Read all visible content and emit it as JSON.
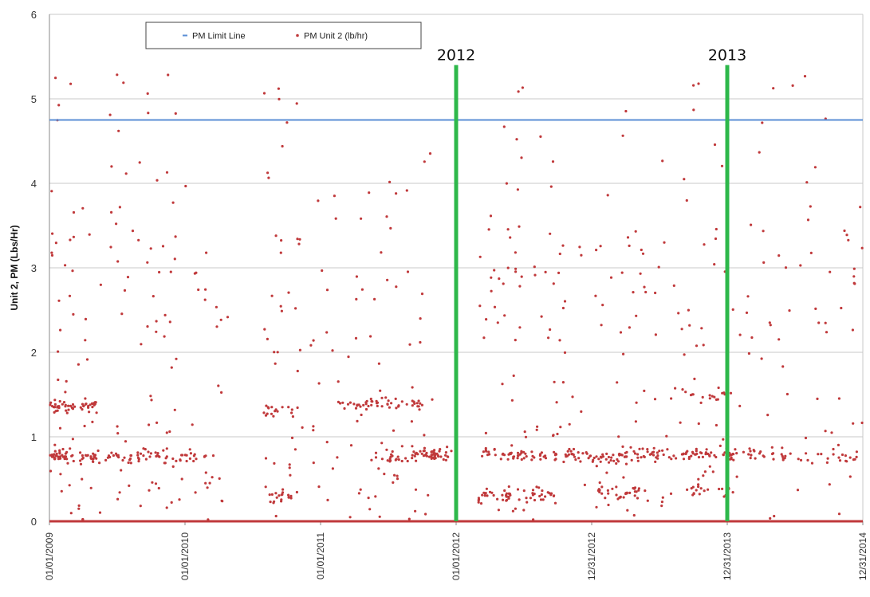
{
  "chart_data": {
    "type": "scatter",
    "ylabel": "Unit 2, PM (Lbs/Hr)",
    "xlabel": "",
    "ylim": [
      0,
      6
    ],
    "yticks": [
      0,
      1,
      2,
      3,
      4,
      5,
      6
    ],
    "xlim": [
      "2009-01-01",
      "2014-12-31"
    ],
    "xtick_labels": [
      "01/01/2009",
      "01/01/2010",
      "01/01/2011",
      "01/01/2012",
      "12/31/2012",
      "12/31/2013",
      "12/31/2014"
    ],
    "xtick_dates": [
      "2009-01-01",
      "2010-01-01",
      "2011-01-01",
      "2012-01-01",
      "2012-12-31",
      "2013-12-31",
      "2014-12-31"
    ],
    "grid": true,
    "legend_placement": "top-left",
    "legend": [
      {
        "label": "PM Limit Line",
        "color": "#5b8fd6",
        "marker": "line"
      },
      {
        "label": "PM Unit 2 (lb/hr)",
        "color": "#c0393b",
        "marker": "dot"
      }
    ],
    "limit_line": {
      "name": "PM Limit Line",
      "y": 4.75,
      "color": "#5b8fd6"
    },
    "year_markers": [
      {
        "label": "2012",
        "date": "2012-01-01",
        "color": "#2eb84b"
      },
      {
        "label": "2013",
        "date": "2013-12-31",
        "color": "#2eb84b"
      }
    ],
    "series_name": "PM Unit 2 (lb/hr)",
    "series_color": "#c0393b",
    "baseline_y": 0,
    "clusters": [
      {
        "start": "2009-01-01",
        "end": "2009-03-10",
        "level": "high",
        "density": 34
      },
      {
        "start": "2009-01-01",
        "end": "2009-03-10",
        "band": 1.35,
        "density": 28
      },
      {
        "start": "2009-01-01",
        "end": "2009-03-10",
        "band": 0.78,
        "density": 34
      },
      {
        "start": "2009-03-20",
        "end": "2009-05-20",
        "level": "mid",
        "density": 20
      },
      {
        "start": "2009-03-20",
        "end": "2009-05-10",
        "band": 1.38,
        "density": 20
      },
      {
        "start": "2009-03-20",
        "end": "2009-05-10",
        "band": 0.75,
        "density": 22
      },
      {
        "start": "2009-06-01",
        "end": "2009-08-15",
        "level": "high",
        "density": 22
      },
      {
        "start": "2009-06-01",
        "end": "2009-08-15",
        "band": 0.75,
        "density": 20
      },
      {
        "start": "2009-08-25",
        "end": "2009-11-20",
        "level": "high",
        "density": 30
      },
      {
        "start": "2009-08-25",
        "end": "2009-11-20",
        "band": 0.78,
        "density": 24
      },
      {
        "start": "2009-11-20",
        "end": "2010-03-01",
        "level": "high",
        "density": 26
      },
      {
        "start": "2009-11-20",
        "end": "2010-03-01",
        "band": 0.75,
        "density": 18
      },
      {
        "start": "2010-03-01",
        "end": "2010-05-01",
        "level": "low",
        "density": 14
      },
      {
        "start": "2010-08-01",
        "end": "2010-11-01",
        "level": "high",
        "density": 34
      },
      {
        "start": "2010-08-01",
        "end": "2010-11-01",
        "band": 1.3,
        "density": 18
      },
      {
        "start": "2010-08-01",
        "end": "2010-11-01",
        "band": 0.3,
        "density": 18
      },
      {
        "start": "2010-11-01",
        "end": "2011-02-15",
        "level": "mid",
        "density": 22
      },
      {
        "start": "2011-02-15",
        "end": "2011-05-15",
        "level": "mid",
        "density": 16
      },
      {
        "start": "2011-02-15",
        "end": "2011-05-15",
        "band": 1.38,
        "density": 18
      },
      {
        "start": "2011-05-15",
        "end": "2011-08-15",
        "level": "mid",
        "density": 24
      },
      {
        "start": "2011-05-15",
        "end": "2011-08-15",
        "band": 1.4,
        "density": 20
      },
      {
        "start": "2011-05-15",
        "end": "2011-08-15",
        "band": 0.75,
        "density": 18
      },
      {
        "start": "2011-08-15",
        "end": "2011-11-01",
        "level": "mid",
        "density": 18
      },
      {
        "start": "2011-08-15",
        "end": "2011-11-01",
        "band": 0.8,
        "density": 30
      },
      {
        "start": "2011-08-15",
        "end": "2011-11-01",
        "band": 1.4,
        "density": 12
      },
      {
        "start": "2011-11-01",
        "end": "2011-12-20",
        "band": 0.8,
        "density": 22
      },
      {
        "start": "2012-03-01",
        "end": "2012-06-01",
        "level": "high",
        "density": 26
      },
      {
        "start": "2012-03-01",
        "end": "2012-06-01",
        "band": 0.3,
        "density": 30
      },
      {
        "start": "2012-03-01",
        "end": "2012-06-01",
        "band": 0.8,
        "density": 22
      },
      {
        "start": "2012-06-01",
        "end": "2012-10-01",
        "level": "high",
        "density": 46
      },
      {
        "start": "2012-06-01",
        "end": "2012-10-01",
        "band": 0.78,
        "density": 30
      },
      {
        "start": "2012-06-01",
        "end": "2012-10-01",
        "band": 0.3,
        "density": 20
      },
      {
        "start": "2012-10-01",
        "end": "2013-01-15",
        "level": "mid",
        "density": 20
      },
      {
        "start": "2012-10-01",
        "end": "2013-01-15",
        "band": 0.78,
        "density": 26
      },
      {
        "start": "2013-01-15",
        "end": "2013-05-15",
        "level": "high",
        "density": 32
      },
      {
        "start": "2013-01-15",
        "end": "2013-05-15",
        "band": 0.78,
        "density": 36
      },
      {
        "start": "2013-01-15",
        "end": "2013-05-15",
        "band": 0.35,
        "density": 30
      },
      {
        "start": "2013-05-15",
        "end": "2013-09-01",
        "level": "high",
        "density": 24
      },
      {
        "start": "2013-05-15",
        "end": "2013-09-01",
        "band": 0.8,
        "density": 24
      },
      {
        "start": "2013-09-01",
        "end": "2014-01-20",
        "level": "high",
        "density": 32
      },
      {
        "start": "2013-09-01",
        "end": "2014-01-20",
        "band": 0.8,
        "density": 46
      },
      {
        "start": "2013-09-01",
        "end": "2014-01-20",
        "band": 1.5,
        "density": 18
      },
      {
        "start": "2013-09-01",
        "end": "2014-01-20",
        "band": 0.35,
        "density": 20
      },
      {
        "start": "2014-01-20",
        "end": "2014-05-01",
        "level": "high",
        "density": 18
      },
      {
        "start": "2014-01-20",
        "end": "2014-05-01",
        "band": 0.8,
        "density": 16
      },
      {
        "start": "2014-05-01",
        "end": "2014-09-01",
        "level": "high",
        "density": 22
      },
      {
        "start": "2014-05-01",
        "end": "2014-09-01",
        "band": 0.75,
        "density": 14
      },
      {
        "start": "2014-09-01",
        "end": "2014-12-31",
        "level": "high",
        "density": 26
      },
      {
        "start": "2014-09-01",
        "end": "2014-12-31",
        "band": 0.75,
        "density": 16
      }
    ]
  }
}
